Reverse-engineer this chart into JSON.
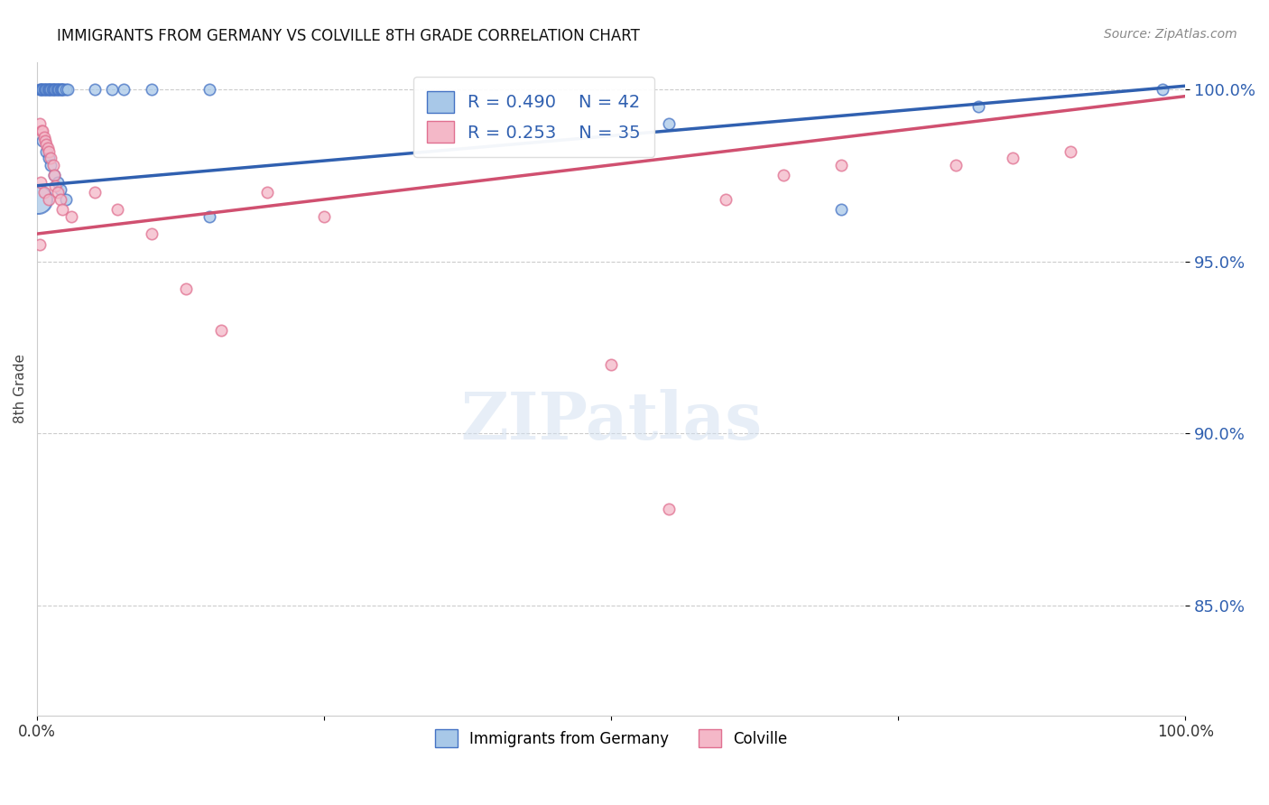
{
  "title": "IMMIGRANTS FROM GERMANY VS COLVILLE 8TH GRADE CORRELATION CHART",
  "source_text": "Source: ZipAtlas.com",
  "ylabel": "8th Grade",
  "xlim": [
    0.0,
    1.0
  ],
  "ylim": [
    0.818,
    1.008
  ],
  "yticks": [
    0.85,
    0.9,
    0.95,
    1.0
  ],
  "ytick_labels": [
    "85.0%",
    "90.0%",
    "95.0%",
    "100.0%"
  ],
  "xticks": [
    0.0,
    0.25,
    0.5,
    0.75,
    1.0
  ],
  "xtick_labels": [
    "0.0%",
    "",
    "",
    "",
    "100.0%"
  ],
  "blue_R": 0.49,
  "blue_N": 42,
  "pink_R": 0.253,
  "pink_N": 35,
  "blue_color": "#A8C8E8",
  "pink_color": "#F4B8C8",
  "blue_edge_color": "#4472C4",
  "pink_edge_color": "#E07090",
  "blue_line_color": "#3060B0",
  "pink_line_color": "#D05070",
  "legend_label_blue": "Immigrants from Germany",
  "legend_label_pink": "Colville",
  "blue_points": [
    [
      0.002,
      1.0
    ],
    [
      0.003,
      1.0
    ],
    [
      0.004,
      1.0
    ],
    [
      0.005,
      1.0
    ],
    [
      0.006,
      1.0
    ],
    [
      0.007,
      1.0
    ],
    [
      0.008,
      1.0
    ],
    [
      0.009,
      1.0
    ],
    [
      0.01,
      1.0
    ],
    [
      0.011,
      1.0
    ],
    [
      0.012,
      1.0
    ],
    [
      0.013,
      1.0
    ],
    [
      0.014,
      1.0
    ],
    [
      0.015,
      1.0
    ],
    [
      0.016,
      1.0
    ],
    [
      0.017,
      1.0
    ],
    [
      0.018,
      1.0
    ],
    [
      0.019,
      1.0
    ],
    [
      0.02,
      1.0
    ],
    [
      0.021,
      1.0
    ],
    [
      0.022,
      1.0
    ],
    [
      0.023,
      1.0
    ],
    [
      0.025,
      1.0
    ],
    [
      0.027,
      1.0
    ],
    [
      0.05,
      1.0
    ],
    [
      0.065,
      1.0
    ],
    [
      0.075,
      1.0
    ],
    [
      0.1,
      1.0
    ],
    [
      0.15,
      1.0
    ],
    [
      0.005,
      0.985
    ],
    [
      0.008,
      0.982
    ],
    [
      0.01,
      0.98
    ],
    [
      0.012,
      0.978
    ],
    [
      0.015,
      0.975
    ],
    [
      0.018,
      0.973
    ],
    [
      0.02,
      0.971
    ],
    [
      0.025,
      0.968
    ],
    [
      0.15,
      0.963
    ],
    [
      0.55,
      0.99
    ],
    [
      0.7,
      0.965
    ],
    [
      0.82,
      0.995
    ],
    [
      0.98,
      1.0
    ]
  ],
  "blue_big_point": [
    0.001,
    0.968,
    500
  ],
  "pink_points": [
    [
      0.002,
      0.99
    ],
    [
      0.004,
      0.988
    ],
    [
      0.005,
      0.988
    ],
    [
      0.006,
      0.986
    ],
    [
      0.007,
      0.985
    ],
    [
      0.008,
      0.984
    ],
    [
      0.009,
      0.983
    ],
    [
      0.01,
      0.982
    ],
    [
      0.012,
      0.98
    ],
    [
      0.014,
      0.978
    ],
    [
      0.015,
      0.975
    ],
    [
      0.016,
      0.972
    ],
    [
      0.018,
      0.97
    ],
    [
      0.02,
      0.968
    ],
    [
      0.022,
      0.965
    ],
    [
      0.03,
      0.963
    ],
    [
      0.003,
      0.973
    ],
    [
      0.006,
      0.97
    ],
    [
      0.01,
      0.968
    ],
    [
      0.002,
      0.955
    ],
    [
      0.05,
      0.97
    ],
    [
      0.07,
      0.965
    ],
    [
      0.2,
      0.97
    ],
    [
      0.25,
      0.963
    ],
    [
      0.1,
      0.958
    ],
    [
      0.13,
      0.942
    ],
    [
      0.16,
      0.93
    ],
    [
      0.5,
      0.92
    ],
    [
      0.6,
      0.968
    ],
    [
      0.65,
      0.975
    ],
    [
      0.7,
      0.978
    ],
    [
      0.8,
      0.978
    ],
    [
      0.85,
      0.98
    ],
    [
      0.9,
      0.982
    ],
    [
      0.55,
      0.878
    ]
  ]
}
